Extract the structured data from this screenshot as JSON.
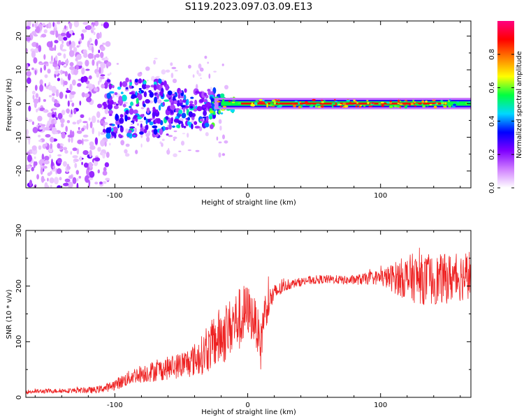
{
  "title": "S119.2023.097.03.09.E13",
  "chart_data": [
    {
      "type": "heatmap",
      "name": "spectrogram",
      "xlabel": "Height of straight line (km)",
      "ylabel": "Frequency (Hz)",
      "xlim": [
        -167,
        168
      ],
      "ylim": [
        -25,
        24.5
      ],
      "xticks": [
        -100,
        0,
        100
      ],
      "yticks": [
        -20,
        -10,
        0,
        10,
        20
      ],
      "colorbar": {
        "label": "Normalized spectral amplitude",
        "range": [
          0,
          1
        ],
        "ticks": [
          0.0,
          0.2,
          0.4,
          0.6,
          0.8
        ],
        "colormap": [
          "#ffffff",
          "#d080ff",
          "#8000ff",
          "#0000ff",
          "#00d8ff",
          "#00ff40",
          "#ffff00",
          "#ff8000",
          "#ff0000",
          "#ff0080"
        ]
      },
      "features": [
        {
          "x_range": [
            -167,
            -105
          ],
          "freq_range": [
            -25,
            24
          ],
          "amplitude": "low (0.0-0.2)",
          "pattern": "scattered"
        },
        {
          "x_range": [
            -105,
            -60
          ],
          "freq_range": [
            -12,
            8
          ],
          "amplitude": "0.2-0.5",
          "pattern": "blobs"
        },
        {
          "x_range": [
            -60,
            -25
          ],
          "freq_range": [
            -8,
            4
          ],
          "amplitude": "0.2-0.6",
          "pattern": "blobs"
        },
        {
          "x_range": [
            -25,
            168
          ],
          "freq_range": [
            -1.5,
            1.5
          ],
          "amplitude": "0.6-1.0 at 0 Hz",
          "pattern": "narrow line"
        }
      ]
    },
    {
      "type": "line",
      "name": "snr",
      "xlabel": "Height of straight line (km)",
      "ylabel": "SNR (10 * v/v)",
      "xlim": [
        -167,
        168
      ],
      "ylim": [
        0,
        300
      ],
      "xticks": [
        -100,
        0,
        100
      ],
      "yticks": [
        0,
        100,
        200,
        300
      ],
      "color": "#ee2222",
      "series": [
        {
          "name": "SNR",
          "x": [
            -167,
            -140,
            -115,
            -105,
            -95,
            -85,
            -75,
            -65,
            -55,
            -45,
            -40,
            -35,
            -30,
            -25,
            -20,
            -15,
            -12,
            -8,
            -5,
            -2,
            0,
            3,
            6,
            10,
            12,
            15,
            18,
            22,
            28,
            35,
            45,
            55,
            65,
            75,
            85,
            95,
            105,
            115,
            125,
            135,
            145,
            155,
            165,
            168
          ],
          "mean": [
            10,
            12,
            13,
            18,
            28,
            40,
            45,
            50,
            55,
            62,
            68,
            75,
            85,
            100,
            110,
            120,
            130,
            140,
            140,
            150,
            158,
            145,
            135,
            90,
            150,
            165,
            180,
            190,
            200,
            205,
            210,
            212,
            212,
            210,
            212,
            215,
            215,
            215,
            215,
            210,
            212,
            215,
            220,
            225
          ],
          "amp": [
            4,
            4,
            6,
            8,
            12,
            15,
            18,
            20,
            22,
            28,
            30,
            35,
            40,
            50,
            55,
            55,
            50,
            55,
            60,
            55,
            45,
            45,
            40,
            45,
            40,
            30,
            22,
            15,
            10,
            8,
            8,
            8,
            8,
            8,
            10,
            12,
            20,
            35,
            45,
            45,
            45,
            45,
            45,
            45
          ]
        }
      ]
    }
  ]
}
